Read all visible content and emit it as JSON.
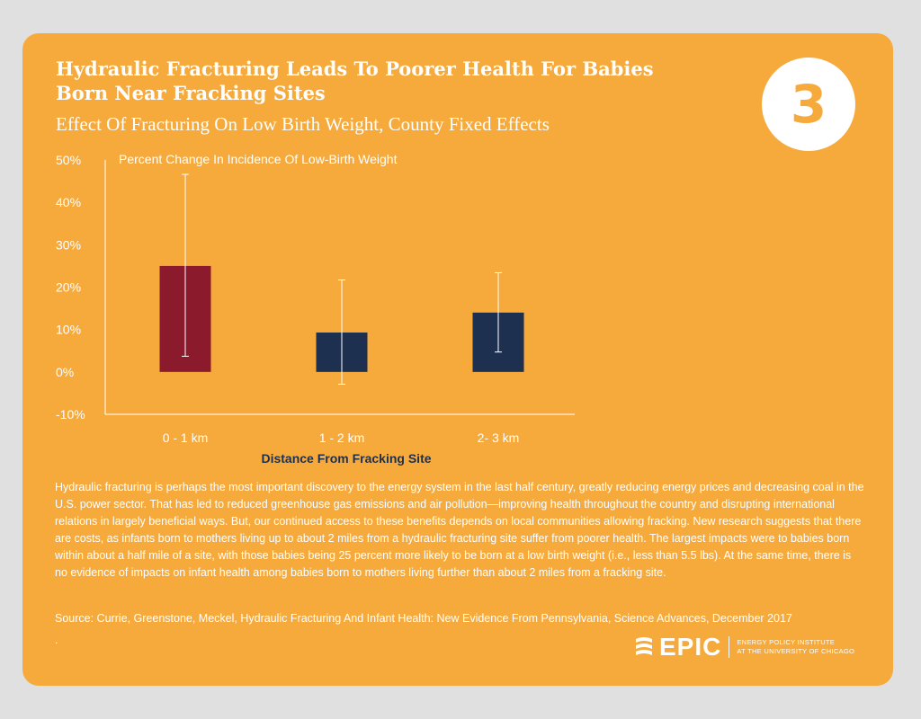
{
  "header": {
    "title": "Hydraulic Fracturing Leads To Poorer Health For Babies Born Near Fracking Sites",
    "subtitle": "Effect Of Fracturing On Low Birth Weight, County Fixed Effects",
    "badge_number": "3"
  },
  "chart_data": {
    "type": "bar",
    "title": "Effect Of Fracturing On Low Birth Weight, County Fixed Effects",
    "ylabel": "Percent Change In Incidence Of Low-Birth Weight",
    "xlabel": "Distance From Fracking Site",
    "ylim": [
      -10,
      50
    ],
    "yticks": [
      50,
      40,
      30,
      20,
      10,
      0,
      -10
    ],
    "ytick_labels": [
      "50%",
      "40%",
      "30%",
      "20%",
      "10%",
      "0%",
      "-10%"
    ],
    "categories": [
      "0 - 1 km",
      "1 - 2 km",
      "2- 3 km"
    ],
    "values": [
      25,
      9.3,
      14
    ],
    "error_low": [
      3.7,
      -2.9,
      4.7
    ],
    "error_high": [
      46.6,
      21.7,
      23.4
    ],
    "bar_colors": [
      "#8a1a2c",
      "#1e3050",
      "#1e3050"
    ],
    "grid": false
  },
  "body": {
    "paragraph": "Hydraulic fracturing is perhaps the most important discovery to the energy system in the last half century, greatly reducing energy prices and decreasing coal in the U.S. power sector. That has led to reduced greenhouse gas emissions and air pollution—improving health throughout the country and disrupting international relations in largely beneficial ways. But, our continued access to these benefits depends on local communities allowing fracking. New research suggests that there are costs, as infants born to mothers living up to about 2 miles from a hydraulic fracturing site suffer from poorer health. The largest impacts were to babies born within about a half mile of a site, with those babies being 25 percent more likely to be born at a low birth weight (i.e., less than 5.5 lbs). At the same time, there is no evidence of impacts on infant health among babies born to mothers living further than about 2 miles from a fracking site.",
    "source": "Source: Currie, Greenstone, Meckel, Hydraulic Fracturing And Infant Health: New Evidence From Pennsylvania, Science Advances, December 2017",
    "trailing_dot": "."
  },
  "logo": {
    "word": "EPIC",
    "line1": "ENERGY POLICY INSTITUTE",
    "line2": "AT THE UNIVERSITY OF CHICAGO"
  },
  "colors": {
    "background": "#f7aa3c",
    "accent_red": "#8a1a2c",
    "accent_navy": "#1e3050"
  }
}
